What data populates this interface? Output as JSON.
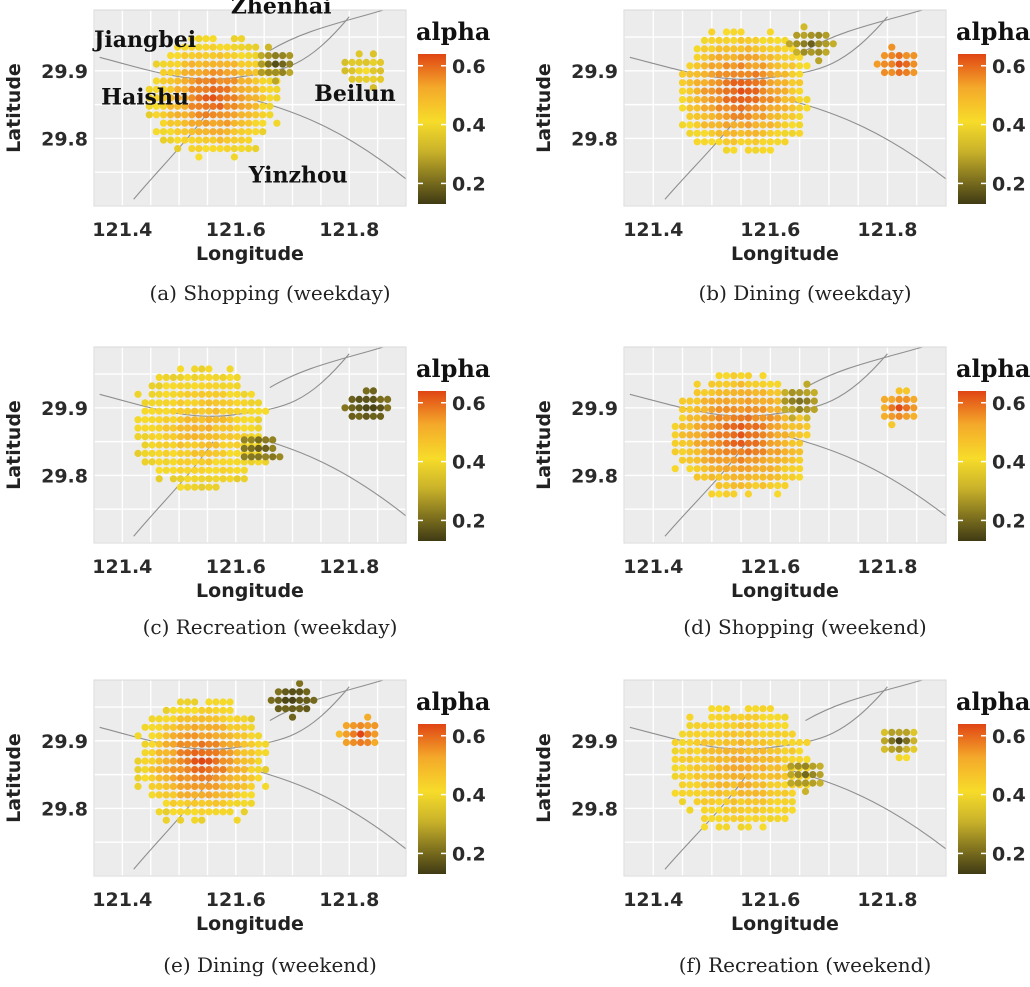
{
  "figure": {
    "legend_title": "alpha",
    "legend_ticks": [
      "0.6",
      "0.4",
      "0.2"
    ],
    "colors": {
      "panel_bg": "#ececec",
      "grid": "#ffffff",
      "road": "#8f8f8f",
      "scale_low": "#3f3a14",
      "scale_mid": "#f7dc2a",
      "scale_high": "#e04514"
    }
  },
  "chart_data": [
    {
      "type": "scatter",
      "caption": "(a) Shopping (weekday)",
      "xlabel": "Longitude",
      "ylabel": "Latitude",
      "xticks": [
        "121.4",
        "121.6",
        "121.8"
      ],
      "yticks": [
        "29.9",
        "29.8"
      ],
      "xlim": [
        121.35,
        121.9
      ],
      "ylim": [
        29.7,
        29.99
      ],
      "color_scale": {
        "variable": "alpha",
        "min": 0.13,
        "max": 0.64
      },
      "annotations": [
        {
          "text": "Jiangbei",
          "lon": 121.44,
          "lat": 29.935
        },
        {
          "text": "Zhenhai",
          "lon": 121.68,
          "lat": 29.985
        },
        {
          "text": "Haishu",
          "lon": 121.44,
          "lat": 29.85
        },
        {
          "text": "Beilun",
          "lon": 121.81,
          "lat": 29.855
        },
        {
          "text": "Yinzhou",
          "lon": 121.71,
          "lat": 29.735
        }
      ],
      "clusters": [
        {
          "region": "city center",
          "lon": 121.56,
          "lat": 29.86,
          "alpha_peak": 0.62,
          "alpha_edge": 0.38
        },
        {
          "region": "northeast (Zhenhai)",
          "lon": 121.67,
          "lat": 29.91,
          "alpha_peak": 0.16,
          "alpha_edge": 0.3
        },
        {
          "region": "Beilun",
          "lon": 121.83,
          "lat": 29.9,
          "alpha_peak": 0.38,
          "alpha_edge": 0.34
        }
      ]
    },
    {
      "type": "scatter",
      "caption": "(b) Dining (weekday)",
      "xlabel": "Longitude",
      "ylabel": "Latitude",
      "xticks": [
        "121.4",
        "121.6",
        "121.8"
      ],
      "yticks": [
        "29.9",
        "29.8"
      ],
      "xlim": [
        121.35,
        121.9
      ],
      "ylim": [
        29.7,
        29.99
      ],
      "color_scale": {
        "variable": "alpha",
        "min": 0.13,
        "max": 0.64
      },
      "clusters": [
        {
          "region": "city center",
          "lon": 121.55,
          "lat": 29.87,
          "alpha_peak": 0.63,
          "alpha_edge": 0.4
        },
        {
          "region": "northeast (Zhenhai)",
          "lon": 121.67,
          "lat": 29.94,
          "alpha_peak": 0.2,
          "alpha_edge": 0.3
        },
        {
          "region": "Beilun",
          "lon": 121.82,
          "lat": 29.91,
          "alpha_peak": 0.6,
          "alpha_edge": 0.52
        }
      ]
    },
    {
      "type": "scatter",
      "caption": "(c) Recreation (weekday)",
      "xlabel": "Longitude",
      "ylabel": "Latitude",
      "xticks": [
        "121.4",
        "121.6",
        "121.8"
      ],
      "yticks": [
        "29.9",
        "29.8"
      ],
      "xlim": [
        121.35,
        121.9
      ],
      "ylim": [
        29.7,
        29.99
      ],
      "color_scale": {
        "variable": "alpha",
        "min": 0.13,
        "max": 0.64
      },
      "clusters": [
        {
          "region": "city center",
          "lon": 121.54,
          "lat": 29.87,
          "alpha_peak": 0.48,
          "alpha_edge": 0.38
        },
        {
          "region": "east edge",
          "lon": 121.64,
          "lat": 29.84,
          "alpha_peak": 0.17,
          "alpha_edge": 0.25
        },
        {
          "region": "Beilun",
          "lon": 121.83,
          "lat": 29.9,
          "alpha_peak": 0.14,
          "alpha_edge": 0.2
        }
      ]
    },
    {
      "type": "scatter",
      "caption": "(d) Shopping (weekend)",
      "xlabel": "Longitude",
      "ylabel": "Latitude",
      "xticks": [
        "121.4",
        "121.6",
        "121.8"
      ],
      "yticks": [
        "29.9",
        "29.8"
      ],
      "xlim": [
        121.35,
        121.9
      ],
      "ylim": [
        29.7,
        29.99
      ],
      "color_scale": {
        "variable": "alpha",
        "min": 0.13,
        "max": 0.64
      },
      "clusters": [
        {
          "region": "city center",
          "lon": 121.55,
          "lat": 29.86,
          "alpha_peak": 0.62,
          "alpha_edge": 0.42
        },
        {
          "region": "northeast (Zhenhai)",
          "lon": 121.65,
          "lat": 29.91,
          "alpha_peak": 0.2,
          "alpha_edge": 0.3
        },
        {
          "region": "Beilun",
          "lon": 121.82,
          "lat": 29.9,
          "alpha_peak": 0.62,
          "alpha_edge": 0.45
        }
      ]
    },
    {
      "type": "scatter",
      "caption": "(e) Dining (weekend)",
      "xlabel": "Longitude",
      "ylabel": "Latitude",
      "xticks": [
        "121.4",
        "121.6",
        "121.8"
      ],
      "yticks": [
        "29.9",
        "29.8"
      ],
      "xlim": [
        121.35,
        121.9
      ],
      "ylim": [
        29.7,
        29.99
      ],
      "color_scale": {
        "variable": "alpha",
        "min": 0.13,
        "max": 0.64
      },
      "clusters": [
        {
          "region": "city center",
          "lon": 121.54,
          "lat": 29.87,
          "alpha_peak": 0.63,
          "alpha_edge": 0.38
        },
        {
          "region": "northeast (Zhenhai)",
          "lon": 121.7,
          "lat": 29.96,
          "alpha_peak": 0.14,
          "alpha_edge": 0.2
        },
        {
          "region": "Beilun",
          "lon": 121.82,
          "lat": 29.91,
          "alpha_peak": 0.63,
          "alpha_edge": 0.48
        }
      ]
    },
    {
      "type": "scatter",
      "caption": "(f) Recreation (weekend)",
      "xlabel": "Longitude",
      "ylabel": "Latitude",
      "xticks": [
        "121.4",
        "121.6",
        "121.8"
      ],
      "yticks": [
        "29.9",
        "29.8"
      ],
      "xlim": [
        121.35,
        121.9
      ],
      "ylim": [
        29.7,
        29.99
      ],
      "color_scale": {
        "variable": "alpha",
        "min": 0.13,
        "max": 0.64
      },
      "clusters": [
        {
          "region": "city center",
          "lon": 121.55,
          "lat": 29.86,
          "alpha_peak": 0.5,
          "alpha_edge": 0.4
        },
        {
          "region": "east edge",
          "lon": 121.66,
          "lat": 29.85,
          "alpha_peak": 0.2,
          "alpha_edge": 0.3
        },
        {
          "region": "Beilun",
          "lon": 121.82,
          "lat": 29.9,
          "alpha_peak": 0.15,
          "alpha_edge": 0.38
        }
      ]
    }
  ]
}
